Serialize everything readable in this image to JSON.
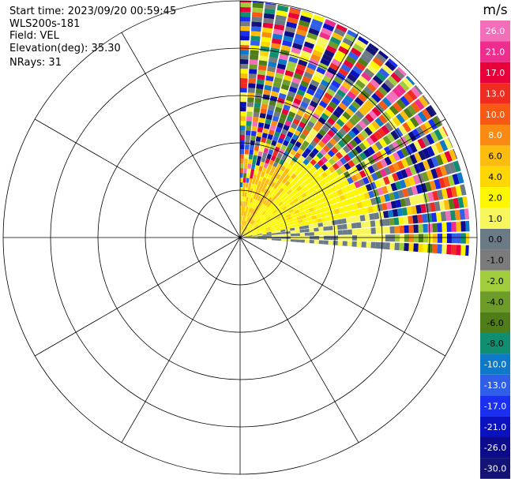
{
  "header": {
    "start_time": "Start time: 2023/09/20 00:59:45",
    "instrument": "WLS200s-181",
    "field": "Field: VEL",
    "elevation": "Elevation(deg): 35.30",
    "nrays": "NRays: 31"
  },
  "colorbar": {
    "unit": "m/s",
    "labels": [
      "26.0",
      "21.0",
      "17.0",
      "13.0",
      "10.0",
      "8.0",
      "6.0",
      "4.0",
      "2.0",
      "1.0",
      "0.0",
      "-1.0",
      "-2.0",
      "-4.0",
      "-6.0",
      "-8.0",
      "-10.0",
      "-13.0",
      "-17.0",
      "-21.0",
      "-26.0",
      "-30.0"
    ],
    "colors": [
      "#f46fb9",
      "#ee2d8e",
      "#e8003a",
      "#f02b1f",
      "#f85a16",
      "#fb8a12",
      "#fdbd0e",
      "#ffd700",
      "#fdf700",
      "#f8f65d",
      "#6b7b86",
      "#7b7b7b",
      "#a1cc3c",
      "#6e9c2b",
      "#4f7d18",
      "#0f8f6f",
      "#0f79c9",
      "#2f5fe8",
      "#1a2ff0",
      "#0a12c0",
      "#0b0b8c",
      "#131376"
    ]
  },
  "chart_data": {
    "type": "ppi-polar-heatmap",
    "field": "VEL",
    "unit": "m/s",
    "elevation_deg": 35.3,
    "nrays": 31,
    "azimuth_range_deg": [
      0,
      95
    ],
    "range_rings": 5,
    "radial_spokes": 12,
    "color_scale_min": -30.0,
    "color_scale_max": 26.0,
    "regions": [
      {
        "description": "near range, upper sector",
        "value_class": "4.0",
        "color": "#ffd700"
      },
      {
        "description": "near range",
        "value_class": "2.0",
        "color": "#fdf700"
      },
      {
        "description": "near range, horizontal rays",
        "value_class": "0.0",
        "color": "#6b7b86"
      },
      {
        "description": "far range",
        "value_class": "mixed noise",
        "color": "#0b0b8c"
      }
    ]
  }
}
